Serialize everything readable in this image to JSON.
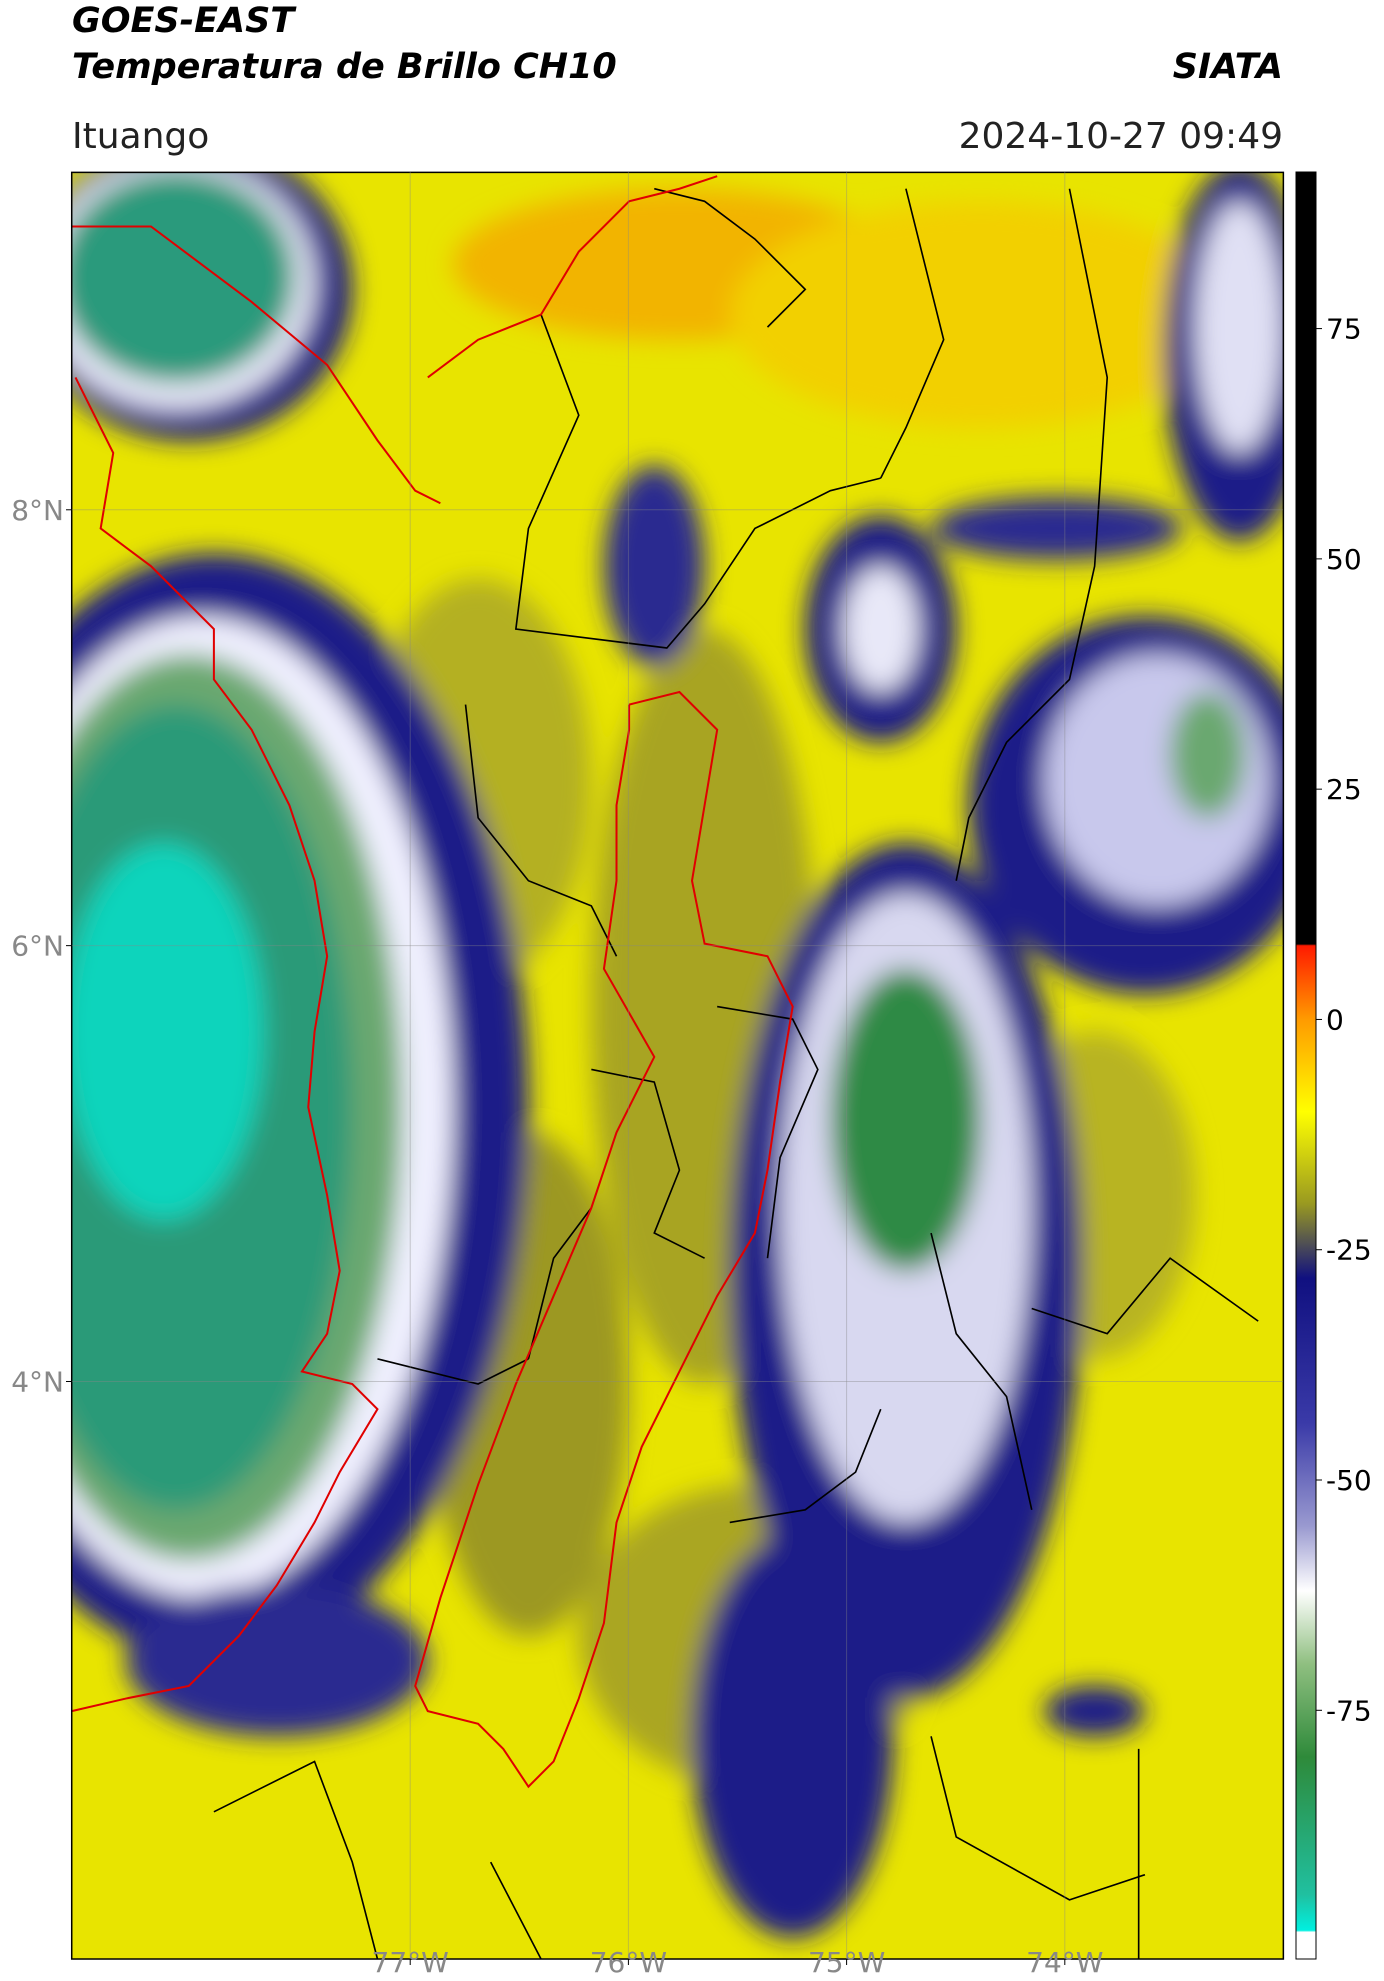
{
  "header": {
    "title": "GOES-EAST",
    "subtitle": "Temperatura de Brillo CH10",
    "source": "SIATA",
    "location": "Ituango",
    "datetime": "2024-10-27 09:49"
  },
  "map": {
    "xlim": [
      -78.55,
      -73.0
    ],
    "ylim": [
      1.35,
      9.55
    ],
    "xticks": [
      {
        "value": -77,
        "label": "77°W"
      },
      {
        "value": -76,
        "label": "76°W"
      },
      {
        "value": -75,
        "label": "75°W"
      },
      {
        "value": -74,
        "label": "74°W"
      }
    ],
    "yticks": [
      {
        "value": 8,
        "label": "8°N"
      },
      {
        "value": 6,
        "label": "6°N"
      },
      {
        "value": 4,
        "label": "4°N"
      }
    ]
  },
  "colorbar": {
    "lim": [
      -102,
      92
    ],
    "ticks": [
      75,
      50,
      25,
      0,
      -25,
      -50,
      -75
    ]
  }
}
